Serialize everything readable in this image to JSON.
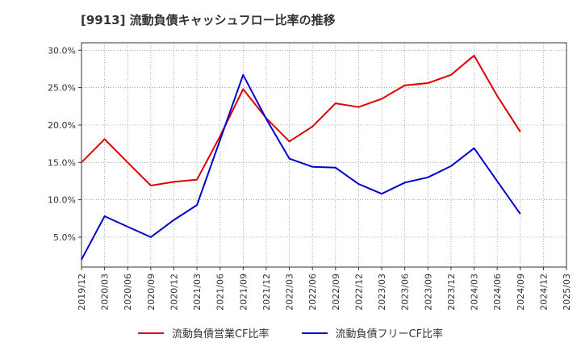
{
  "chart_data": {
    "type": "line",
    "title": "[9913]  流動負債キャッシュフロー比率の推移",
    "xlabel": "",
    "ylabel": "",
    "ylim": [
      1.0,
      31.0
    ],
    "yticks": [
      "5.0%",
      "10.0%",
      "15.0%",
      "20.0%",
      "25.0%",
      "30.0%"
    ],
    "ytick_values": [
      5,
      10,
      15,
      20,
      25,
      30
    ],
    "x": [
      "2019/12",
      "2020/03",
      "2020/06",
      "2020/09",
      "2020/12",
      "2021/03",
      "2021/06",
      "2021/09",
      "2021/12",
      "2022/03",
      "2022/06",
      "2022/09",
      "2022/12",
      "2023/03",
      "2023/06",
      "2023/09",
      "2023/12",
      "2024/03",
      "2024/06",
      "2024/09",
      "2024/12",
      "2025/03"
    ],
    "grid": true,
    "legend_position": "bottom",
    "series": [
      {
        "name": "流動負債営業CF比率",
        "color": "#e00000",
        "values": [
          15.0,
          18.1,
          15.0,
          11.9,
          12.4,
          12.7,
          18.5,
          24.8,
          20.9,
          17.8,
          19.8,
          22.9,
          22.4,
          23.5,
          25.3,
          25.6,
          26.7,
          29.3,
          23.9,
          19.1,
          null,
          null
        ]
      },
      {
        "name": "流動負債フリーCF比率",
        "color": "#0000cc",
        "values": [
          2.0,
          7.8,
          6.4,
          5.0,
          7.3,
          9.3,
          18.0,
          26.7,
          20.8,
          15.5,
          14.4,
          14.3,
          12.1,
          10.8,
          12.3,
          13.0,
          14.5,
          16.9,
          12.5,
          8.1,
          null,
          null
        ]
      }
    ]
  }
}
